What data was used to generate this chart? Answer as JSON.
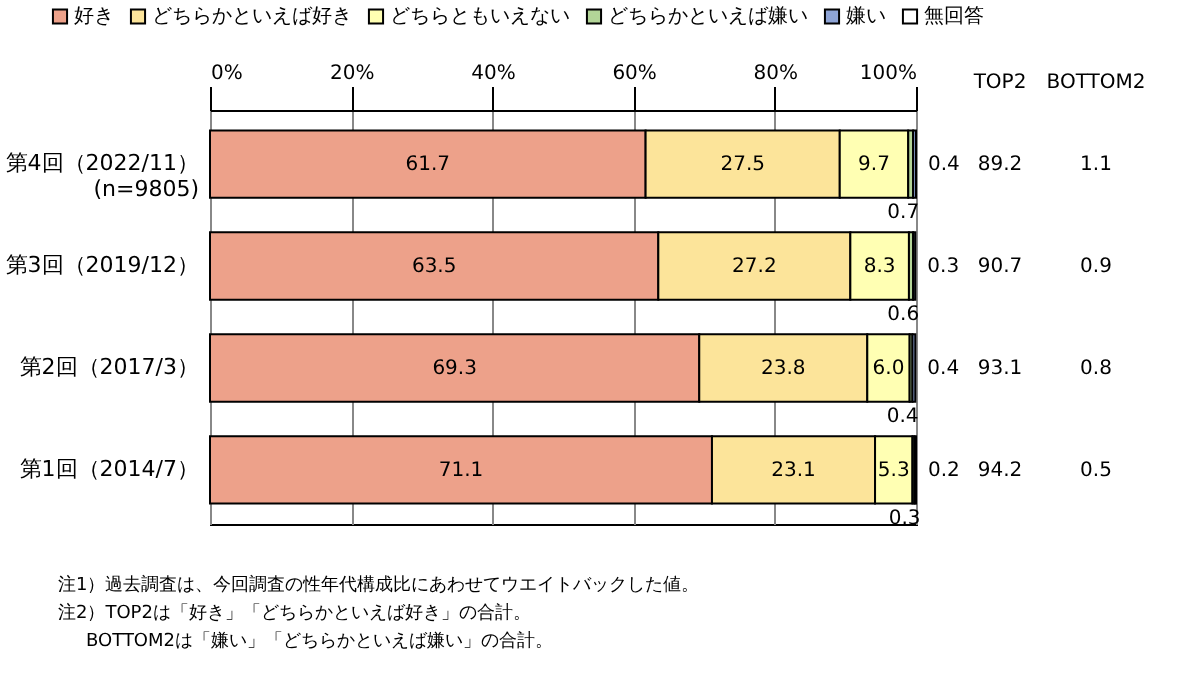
{
  "chart_data": {
    "type": "bar",
    "orientation": "horizontal",
    "stacked": true,
    "categories": [
      "第4回（2022/11）\n(n=9805)",
      "第3回（2019/12）",
      "第2回（2017/3）",
      "第1回（2014/7）"
    ],
    "series": [
      {
        "name": "好き",
        "color": "#eda18a",
        "values": [
          61.7,
          63.5,
          69.3,
          71.1
        ],
        "value_labels": [
          "61.7",
          "63.5",
          "69.3",
          "71.1"
        ]
      },
      {
        "name": "どちらかといえば好き",
        "color": "#fce49a",
        "values": [
          27.5,
          27.2,
          23.8,
          23.1
        ],
        "value_labels": [
          "27.5",
          "27.2",
          "23.8",
          "23.1"
        ]
      },
      {
        "name": "どちらともいえない",
        "color": "#ffffb3",
        "values": [
          9.7,
          8.3,
          6.0,
          5.3
        ],
        "value_labels": [
          "9.7",
          "8.3",
          "6.0",
          "5.3"
        ]
      },
      {
        "name": "どちらかといえば嫌い",
        "color": "#b3d598",
        "values": [
          0.7,
          0.6,
          0.4,
          0.3
        ],
        "value_labels": [
          "0.7",
          "0.6",
          "0.4",
          "0.3"
        ]
      },
      {
        "name": "嫌い",
        "color": "#8ea4d6",
        "values": [
          0.4,
          0.3,
          0.4,
          0.2
        ],
        "value_labels": [
          "0.4",
          "0.3",
          "0.4",
          "0.2"
        ]
      },
      {
        "name": "無回答",
        "color": "#ffffff",
        "values": [
          null,
          null,
          null,
          null
        ],
        "value_labels": [
          null,
          null,
          null,
          null
        ]
      }
    ],
    "xlim": [
      0,
      100
    ],
    "xticks": [
      {
        "value": 0,
        "label": "0%"
      },
      {
        "value": 20,
        "label": "20%"
      },
      {
        "value": 40,
        "label": "40%"
      },
      {
        "value": 60,
        "label": "60%"
      },
      {
        "value": 80,
        "label": "80%"
      },
      {
        "value": 100,
        "label": "100%"
      }
    ],
    "grid": "x",
    "legend": "top",
    "annotations": [
      "TOP2",
      "BOTTOM2",
      "89.2",
      "1.1",
      "90.7",
      "0.9",
      "93.1",
      "0.8",
      "94.2",
      "0.5",
      "注1）過去調査は、今回調査の性年代構成比にあわせてウエイトバックした値。",
      "注2）TOP2は「好き」「どちらかといえば好き」の合計。",
      "BOTTOM2は「嫌い」「どちらかといえば嫌い」の合計。"
    ]
  }
}
